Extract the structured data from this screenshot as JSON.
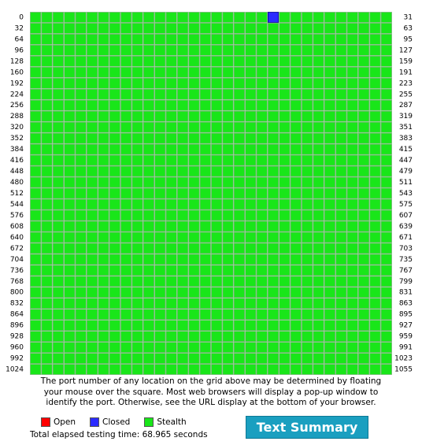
{
  "grid": {
    "left_labels": [
      "0",
      "32",
      "64",
      "96",
      "128",
      "160",
      "192",
      "224",
      "256",
      "288",
      "320",
      "352",
      "384",
      "416",
      "448",
      "480",
      "512",
      "544",
      "576",
      "608",
      "640",
      "672",
      "704",
      "736",
      "768",
      "800",
      "832",
      "864",
      "896",
      "928",
      "960",
      "992",
      "1024"
    ],
    "right_labels": [
      "31",
      "63",
      "95",
      "127",
      "159",
      "191",
      "223",
      "255",
      "287",
      "319",
      "351",
      "383",
      "415",
      "447",
      "479",
      "511",
      "543",
      "575",
      "607",
      "639",
      "671",
      "703",
      "735",
      "767",
      "799",
      "831",
      "863",
      "895",
      "927",
      "959",
      "991",
      "1023",
      "1055"
    ],
    "closed_ports": [
      21
    ]
  },
  "description": [
    "The port number of any location on the grid above may be determined by floating",
    "your mouse over the square. Most web browsers will display a pop-up window to",
    "identify the port. Otherwise, see the URL display at the bottom of your browser."
  ],
  "legend": {
    "open": "Open",
    "closed": "Closed",
    "stealth": "Stealth"
  },
  "elapsed": "Total elapsed testing time: 68.965 seconds",
  "button": "Text Summary"
}
